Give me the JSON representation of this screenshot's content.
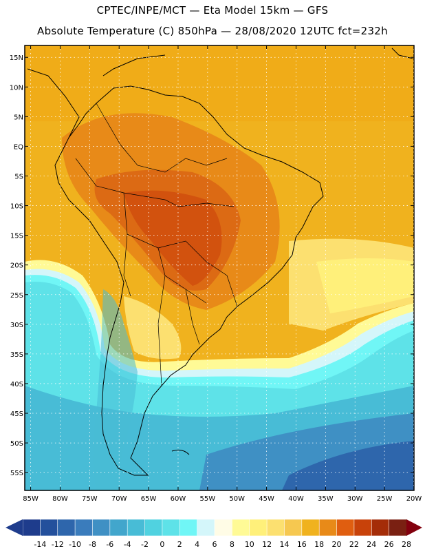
{
  "title_line1": "CPTEC/INPE/MCT —  Eta Model 15km — GFS",
  "title_line2": "Absolute Temperature (C) 850hPa — 28/08/2020 12UTC fct=232h",
  "map": {
    "lon_range": [
      -86,
      -20
    ],
    "lat_range": [
      -58,
      17
    ],
    "lat_labels": [
      {
        "label": "15N",
        "lat": 15
      },
      {
        "label": "10N",
        "lat": 10
      },
      {
        "label": "5N",
        "lat": 5
      },
      {
        "label": "EQ",
        "lat": 0
      },
      {
        "label": "5S",
        "lat": -5
      },
      {
        "label": "10S",
        "lat": -10
      },
      {
        "label": "15S",
        "lat": -15
      },
      {
        "label": "20S",
        "lat": -20
      },
      {
        "label": "25S",
        "lat": -25
      },
      {
        "label": "30S",
        "lat": -30
      },
      {
        "label": "35S",
        "lat": -35
      },
      {
        "label": "40S",
        "lat": -40
      },
      {
        "label": "45S",
        "lat": -45
      },
      {
        "label": "50S",
        "lat": -50
      },
      {
        "label": "55S",
        "lat": -55
      }
    ],
    "lon_labels": [
      {
        "label": "85W",
        "lon": -85
      },
      {
        "label": "80W",
        "lon": -80
      },
      {
        "label": "75W",
        "lon": -75
      },
      {
        "label": "70W",
        "lon": -70
      },
      {
        "label": "65W",
        "lon": -65
      },
      {
        "label": "60W",
        "lon": -60
      },
      {
        "label": "55W",
        "lon": -55
      },
      {
        "label": "50W",
        "lon": -50
      },
      {
        "label": "45W",
        "lon": -45
      },
      {
        "label": "40W",
        "lon": -40
      },
      {
        "label": "35W",
        "lon": -35
      },
      {
        "label": "30W",
        "lon": -30
      },
      {
        "label": "25W",
        "lon": -25
      },
      {
        "label": "20W",
        "lon": -20
      }
    ]
  },
  "colorbar": {
    "labels": [
      "-14",
      "-12",
      "-10",
      "-8",
      "-6",
      "-4",
      "-2",
      "0",
      "2",
      "4",
      "6",
      "8",
      "10",
      "12",
      "14",
      "16",
      "18",
      "20",
      "22",
      "24",
      "26",
      "28"
    ],
    "colors": [
      "#1e3c8c",
      "#23509c",
      "#2e66ac",
      "#3a7cbc",
      "#3f90c4",
      "#42a6cc",
      "#48bcd6",
      "#50d2e0",
      "#5ee2e8",
      "#70f6f6",
      "#d4f6fa",
      "#fffce6",
      "#fffa96",
      "#fff07a",
      "#fce070",
      "#f6c850",
      "#f0b21e",
      "#e88a18",
      "#e05e10",
      "#c8420a",
      "#a42c08",
      "#7a2012"
    ],
    "low_color": "#1e3c8c",
    "high_color": "#82000e"
  }
}
